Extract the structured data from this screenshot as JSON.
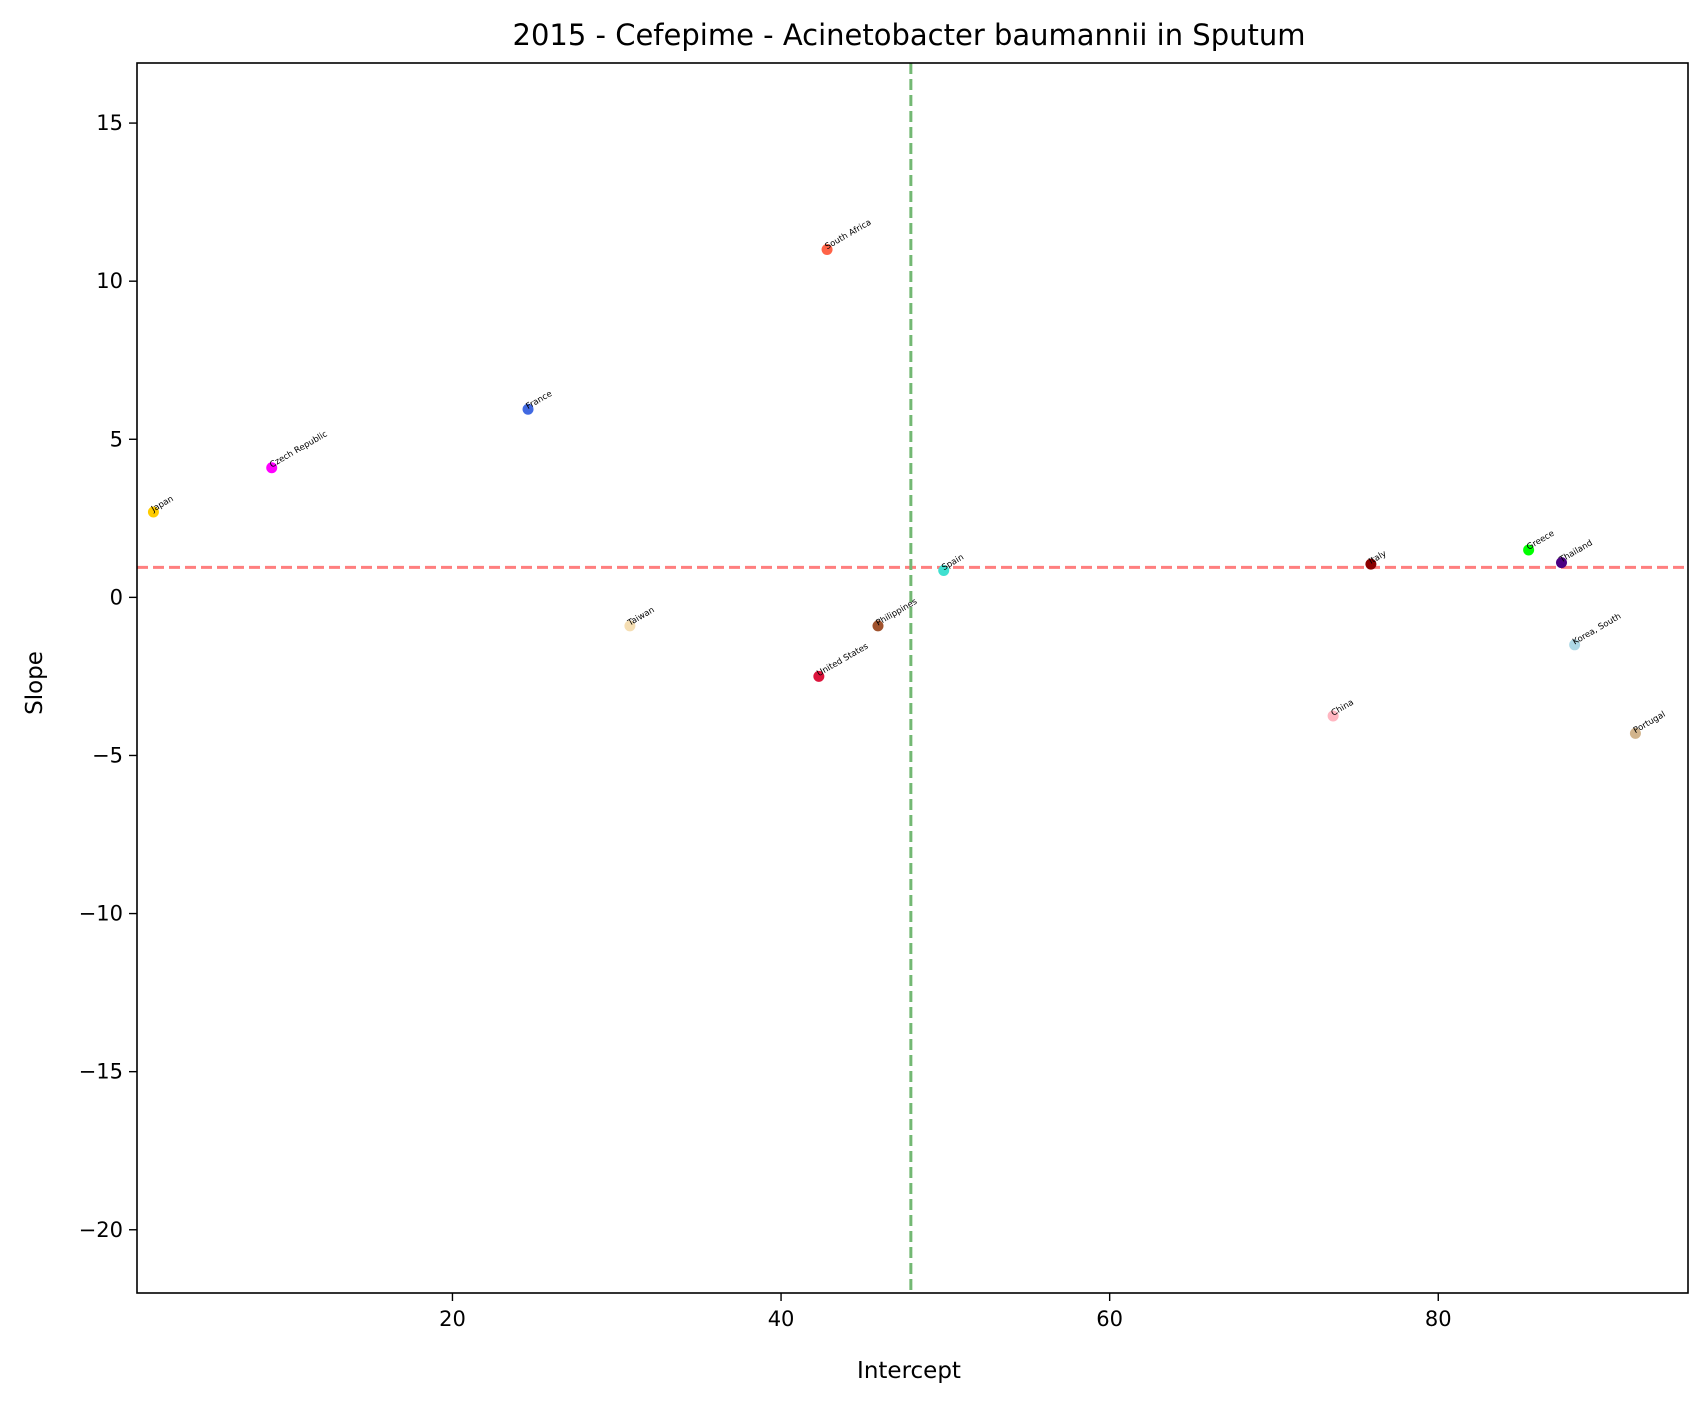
{
  "chart_data": {
    "type": "scatter",
    "title": "2015 - Cefepime - Acinetobacter baumannii in Sputum",
    "xlabel": "Intercept",
    "ylabel": "Slope",
    "xlim": [
      0.8,
      95.2
    ],
    "ylim": [
      -22.0,
      16.9
    ],
    "xticks": [
      20,
      40,
      60,
      80
    ],
    "xtick_labels": [
      "20",
      "40",
      "60",
      "80"
    ],
    "yticks": [
      15,
      10,
      5,
      0,
      -5,
      -10,
      -15,
      -20
    ],
    "ytick_labels": [
      "15",
      "10",
      "5",
      "0",
      "−5",
      "−10",
      "−15",
      "−20"
    ],
    "grid": false,
    "reference_lines": [
      {
        "orientation": "horizontal",
        "value": 0.95,
        "color": "#ff7f7f",
        "style": "dashed"
      },
      {
        "orientation": "vertical",
        "value": 47.9,
        "color": "#73b873",
        "style": "dashed"
      }
    ],
    "points": [
      {
        "label": "Japan",
        "x": 1.8,
        "y": 2.7,
        "color": "#ffcc00"
      },
      {
        "label": "Czech Republic",
        "x": 9.0,
        "y": 4.1,
        "color": "#ff00ff"
      },
      {
        "label": "France",
        "x": 24.6,
        "y": 5.95,
        "color": "#4169e1"
      },
      {
        "label": "Taiwan",
        "x": 30.8,
        "y": -0.9,
        "color": "#f5deb3"
      },
      {
        "label": "South Africa",
        "x": 42.8,
        "y": 11.0,
        "color": "#ff6347"
      },
      {
        "label": "United States",
        "x": 42.3,
        "y": -2.5,
        "color": "#dc143c"
      },
      {
        "label": "Philippines",
        "x": 45.9,
        "y": -0.9,
        "color": "#a0522d"
      },
      {
        "label": "Spain",
        "x": 49.9,
        "y": 0.85,
        "color": "#40e0d0"
      },
      {
        "label": "China",
        "x": 73.6,
        "y": -3.75,
        "color": "#ffb6c1"
      },
      {
        "label": "Italy",
        "x": 75.9,
        "y": 1.05,
        "color": "#8b0000"
      },
      {
        "label": "Greece",
        "x": 85.5,
        "y": 1.5,
        "color": "#00ff00"
      },
      {
        "label": "Thailand",
        "x": 87.5,
        "y": 1.1,
        "color": "#4b0082"
      },
      {
        "label": "Korea, South",
        "x": 88.3,
        "y": -1.5,
        "color": "#add8e6"
      },
      {
        "label": "Portugal",
        "x": 92.0,
        "y": -4.3,
        "color": "#d2b48c"
      }
    ]
  }
}
